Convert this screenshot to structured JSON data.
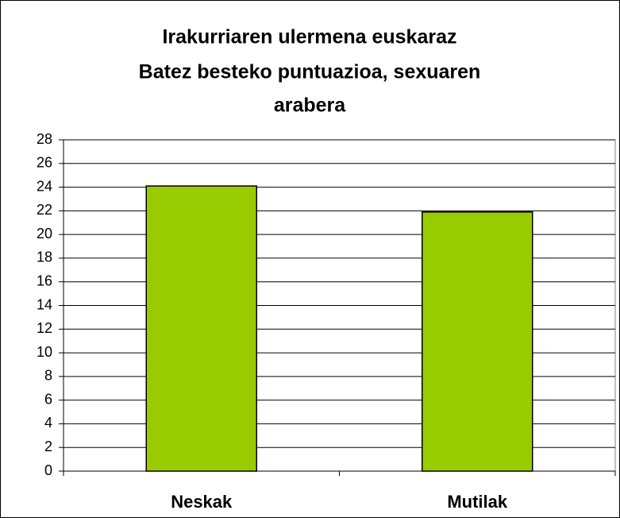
{
  "chart_data": {
    "type": "bar",
    "title": [
      "Irakurriaren ulermena euskaraz",
      "Batez besteko puntuazioa, sexuaren",
      "arabera"
    ],
    "categories": [
      "Neskak",
      "Mutilak"
    ],
    "values": [
      24.1,
      21.9
    ],
    "color": "#99cc00",
    "ylim": [
      0,
      28
    ],
    "yticks": [
      0,
      2,
      4,
      6,
      8,
      10,
      12,
      14,
      16,
      18,
      20,
      22,
      24,
      26,
      28
    ],
    "grid": true
  }
}
